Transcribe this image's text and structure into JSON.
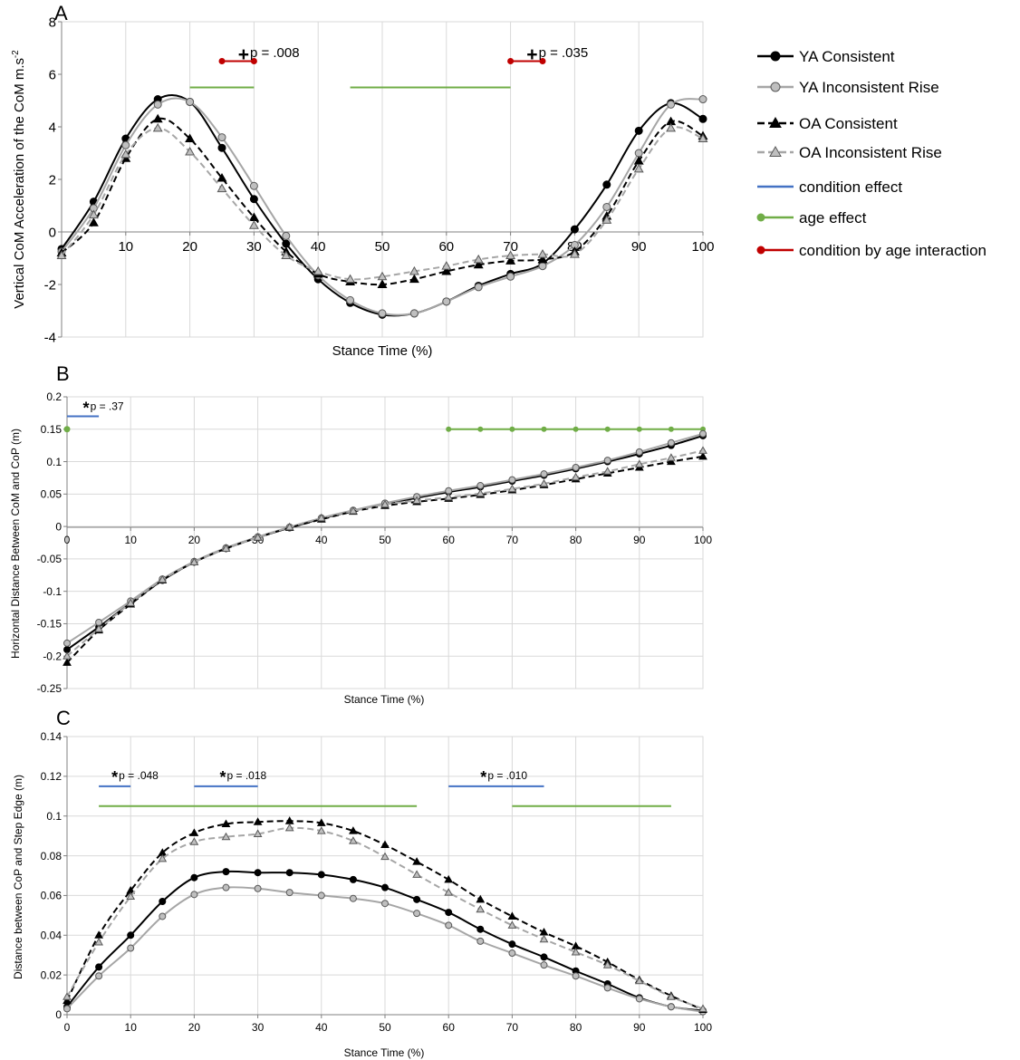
{
  "legend": {
    "items": [
      {
        "label": "YA Consistent",
        "color": "#000000",
        "dash": false,
        "marker": "circle",
        "markerFill": "#000000"
      },
      {
        "label": "YA Inconsistent Rise",
        "color": "#a6a6a6",
        "dash": false,
        "marker": "circle",
        "markerFill": "#bfbfbf"
      },
      {
        "label": "OA Consistent",
        "color": "#000000",
        "dash": true,
        "marker": "triangle",
        "markerFill": "#000000"
      },
      {
        "label": "OA Inconsistent Rise",
        "color": "#a6a6a6",
        "dash": true,
        "marker": "triangle",
        "markerFill": "#bfbfbf"
      },
      {
        "label": "condition effect",
        "color": "#4472c4",
        "dash": false,
        "marker": "none"
      },
      {
        "label": "age effect",
        "color": "#70ad47",
        "dash": false,
        "marker": "dot"
      },
      {
        "label": "condition by age interaction",
        "color": "#c00000",
        "dash": false,
        "marker": "dot"
      }
    ]
  },
  "chart_data": [
    {
      "panel": "A",
      "type": "line",
      "xlabel": "Stance Time (%)",
      "ylabel": "Vertical CoM Acceleration of the CoM m.s",
      "ylabel_sup": "-2",
      "xlim": [
        0,
        100
      ],
      "ylim": [
        -4,
        8
      ],
      "xticks": [
        10,
        20,
        30,
        40,
        50,
        60,
        70,
        80,
        90,
        100
      ],
      "xtick_labels": [
        "10",
        "20",
        "30",
        "40",
        "50",
        "60",
        "70",
        "80",
        "90",
        "100"
      ],
      "yticks": [
        -4,
        -2,
        0,
        2,
        4,
        6,
        8
      ],
      "ytick_labels": [
        "-4",
        "-2",
        "0",
        "2",
        "4",
        "6",
        "8"
      ],
      "grid": "vertical",
      "x": [
        0,
        5,
        10,
        15,
        20,
        25,
        30,
        35,
        40,
        45,
        50,
        55,
        60,
        65,
        70,
        75,
        80,
        85,
        90,
        95,
        100
      ],
      "series": [
        {
          "name": "YA Consistent",
          "values": [
            -0.65,
            1.15,
            3.55,
            5.05,
            4.95,
            3.2,
            1.25,
            -0.45,
            -1.8,
            -2.7,
            -3.15,
            -3.1,
            -2.65,
            -2.05,
            -1.6,
            -1.2,
            0.1,
            1.8,
            3.85,
            4.9,
            4.3
          ]
        },
        {
          "name": "YA Inconsistent Rise",
          "values": [
            -0.75,
            0.9,
            3.3,
            4.85,
            4.95,
            3.6,
            1.75,
            -0.15,
            -1.65,
            -2.6,
            -3.1,
            -3.1,
            -2.65,
            -2.1,
            -1.7,
            -1.3,
            -0.5,
            0.95,
            3.0,
            4.85,
            5.05
          ]
        },
        {
          "name": "OA Consistent",
          "values": [
            -0.8,
            0.35,
            2.8,
            4.3,
            3.55,
            2.05,
            0.55,
            -0.75,
            -1.6,
            -1.9,
            -2.0,
            -1.8,
            -1.5,
            -1.25,
            -1.1,
            -1.05,
            -0.75,
            0.6,
            2.7,
            4.2,
            3.65
          ]
        },
        {
          "name": "OA Inconsistent Rise",
          "values": [
            -0.9,
            0.65,
            2.95,
            3.95,
            3.05,
            1.65,
            0.25,
            -0.9,
            -1.5,
            -1.8,
            -1.7,
            -1.5,
            -1.3,
            -1.05,
            -0.9,
            -0.85,
            -0.85,
            0.45,
            2.4,
            3.95,
            3.55
          ]
        }
      ],
      "sig_lines": [
        {
          "kind": "age effect",
          "from": 20,
          "to": 30,
          "y": 5.5,
          "endpoints": false
        },
        {
          "kind": "age effect",
          "from": 45,
          "to": 70,
          "y": 5.5,
          "endpoints": false
        },
        {
          "kind": "condition by age interaction",
          "from": 25,
          "to": 30,
          "y": 6.5,
          "endpoints": true
        },
        {
          "kind": "condition by age interaction",
          "from": 70,
          "to": 75,
          "y": 6.5,
          "endpoints": true
        }
      ],
      "annotations": [
        {
          "symbol": "+",
          "text": "p = .008",
          "x": 27.5,
          "y": 6.65
        },
        {
          "symbol": "+",
          "text": "p = .035",
          "x": 72.5,
          "y": 6.65
        }
      ]
    },
    {
      "panel": "B",
      "type": "line",
      "xlabel": "Stance Time (%)",
      "ylabel": "Horizontal Distance Between CoM and CoP (m)",
      "xlim": [
        0,
        100
      ],
      "ylim": [
        -0.25,
        0.2
      ],
      "xticks": [
        0,
        10,
        20,
        30,
        40,
        50,
        60,
        70,
        80,
        90,
        100
      ],
      "xtick_labels": [
        "0",
        "10",
        "20",
        "30",
        "40",
        "50",
        "60",
        "70",
        "80",
        "90",
        "100"
      ],
      "yticks": [
        -0.25,
        -0.2,
        -0.15,
        -0.1,
        -0.05,
        0,
        0.05,
        0.1,
        0.15,
        0.2
      ],
      "ytick_labels": [
        "-0.25",
        "-0.2",
        "-0.15",
        "-0.1",
        "-0.05",
        "0",
        "0.05",
        "0.1",
        "0.15",
        "0.2"
      ],
      "grid": "both",
      "x": [
        0,
        5,
        10,
        15,
        20,
        25,
        30,
        35,
        40,
        45,
        50,
        55,
        60,
        65,
        70,
        75,
        80,
        85,
        90,
        95,
        100
      ],
      "series": [
        {
          "name": "YA Consistent",
          "values": [
            -0.19,
            -0.155,
            -0.118,
            -0.083,
            -0.055,
            -0.034,
            -0.017,
            -0.002,
            0.012,
            0.024,
            0.035,
            0.044,
            0.053,
            0.061,
            0.07,
            0.079,
            0.089,
            0.1,
            0.112,
            0.125,
            0.14
          ]
        },
        {
          "name": "YA Inconsistent Rise",
          "values": [
            -0.18,
            -0.148,
            -0.115,
            -0.081,
            -0.054,
            -0.033,
            -0.016,
            -0.001,
            0.013,
            0.025,
            0.036,
            0.046,
            0.055,
            0.063,
            0.072,
            0.081,
            0.091,
            0.102,
            0.115,
            0.129,
            0.143
          ]
        },
        {
          "name": "OA Consistent",
          "values": [
            -0.21,
            -0.16,
            -0.12,
            -0.083,
            -0.055,
            -0.034,
            -0.017,
            -0.002,
            0.011,
            0.023,
            0.032,
            0.038,
            0.043,
            0.049,
            0.056,
            0.064,
            0.073,
            0.082,
            0.091,
            0.1,
            0.108
          ]
        },
        {
          "name": "OA Inconsistent Rise",
          "values": [
            -0.2,
            -0.158,
            -0.118,
            -0.082,
            -0.055,
            -0.034,
            -0.017,
            -0.001,
            0.013,
            0.024,
            0.034,
            0.04,
            0.045,
            0.051,
            0.058,
            0.066,
            0.076,
            0.085,
            0.096,
            0.106,
            0.117
          ]
        }
      ],
      "sig_lines": [
        {
          "kind": "condition effect",
          "from": 0,
          "to": 5,
          "y": 0.17,
          "endpoints": false
        },
        {
          "kind": "age effect",
          "from": 0,
          "to": 0,
          "y": 0.15,
          "endpoints": true
        },
        {
          "kind": "age effect",
          "from": 60,
          "to": 100,
          "y": 0.15,
          "endpoints": false,
          "dots": [
            60,
            65,
            70,
            75,
            80,
            85,
            90,
            95,
            100
          ]
        }
      ],
      "annotations": [
        {
          "symbol": "*",
          "text": "p = .37",
          "x": 2.5,
          "y": 0.18
        }
      ]
    },
    {
      "panel": "C",
      "type": "line",
      "xlabel": "Stance Time (%)",
      "ylabel": "Distance between CoP and Step Edge (m)",
      "xlim": [
        0,
        100
      ],
      "ylim": [
        0,
        0.14
      ],
      "xticks": [
        0,
        10,
        20,
        30,
        40,
        50,
        60,
        70,
        80,
        90,
        100
      ],
      "xtick_labels": [
        "0",
        "10",
        "20",
        "30",
        "40",
        "50",
        "60",
        "70",
        "80",
        "90",
        "100"
      ],
      "yticks": [
        0,
        0.02,
        0.04,
        0.06,
        0.08,
        0.1,
        0.12,
        0.14
      ],
      "ytick_labels": [
        "0",
        "0.02",
        "0.04",
        "0.06",
        "0.08",
        "0.1",
        "0.12",
        "0.14"
      ],
      "grid": "both",
      "x": [
        0,
        5,
        10,
        15,
        20,
        25,
        30,
        35,
        40,
        45,
        50,
        55,
        60,
        65,
        70,
        75,
        80,
        85,
        90,
        95,
        100
      ],
      "series": [
        {
          "name": "YA Consistent",
          "values": [
            0.004,
            0.024,
            0.04,
            0.057,
            0.069,
            0.072,
            0.0715,
            0.0715,
            0.0705,
            0.068,
            0.064,
            0.058,
            0.0515,
            0.043,
            0.0355,
            0.029,
            0.022,
            0.0155,
            0.0085,
            0.004,
            0.002
          ]
        },
        {
          "name": "YA Inconsistent Rise",
          "values": [
            0.003,
            0.0195,
            0.0335,
            0.0495,
            0.0605,
            0.064,
            0.0635,
            0.0615,
            0.06,
            0.0585,
            0.056,
            0.051,
            0.045,
            0.037,
            0.031,
            0.025,
            0.0195,
            0.0135,
            0.008,
            0.004,
            0.0015
          ]
        },
        {
          "name": "OA Consistent",
          "values": [
            0.007,
            0.04,
            0.0625,
            0.0815,
            0.0915,
            0.096,
            0.097,
            0.0975,
            0.0965,
            0.0925,
            0.0855,
            0.077,
            0.068,
            0.058,
            0.0495,
            0.0415,
            0.0345,
            0.0265,
            0.0175,
            0.0095,
            0.0025
          ]
        },
        {
          "name": "OA Inconsistent Rise",
          "values": [
            0.009,
            0.0365,
            0.0595,
            0.0785,
            0.087,
            0.0895,
            0.091,
            0.094,
            0.0925,
            0.0875,
            0.0795,
            0.0705,
            0.0615,
            0.053,
            0.045,
            0.038,
            0.0315,
            0.025,
            0.017,
            0.009,
            0.003
          ]
        }
      ],
      "sig_lines": [
        {
          "kind": "condition effect",
          "from": 5,
          "to": 10,
          "y": 0.115,
          "endpoints": false
        },
        {
          "kind": "condition effect",
          "from": 20,
          "to": 30,
          "y": 0.115,
          "endpoints": false
        },
        {
          "kind": "condition effect",
          "from": 60,
          "to": 75,
          "y": 0.115,
          "endpoints": false
        },
        {
          "kind": "age effect",
          "from": 5,
          "to": 55,
          "y": 0.105,
          "endpoints": false
        },
        {
          "kind": "age effect",
          "from": 70,
          "to": 95,
          "y": 0.105,
          "endpoints": false
        }
      ],
      "annotations": [
        {
          "symbol": "*",
          "text": "p = .048",
          "x": 7,
          "y": 0.1185
        },
        {
          "symbol": "*",
          "text": "p = .018",
          "x": 24,
          "y": 0.1185
        },
        {
          "symbol": "*",
          "text": "p = .010",
          "x": 65,
          "y": 0.1185
        }
      ]
    }
  ]
}
